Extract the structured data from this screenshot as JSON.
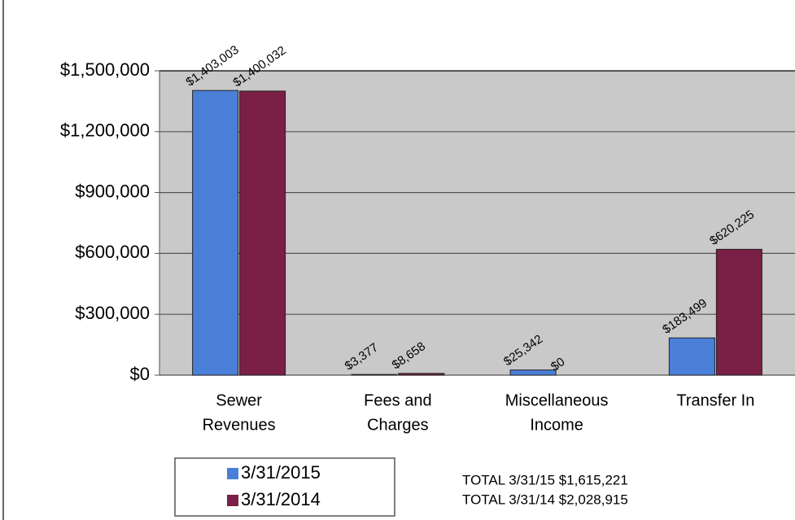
{
  "chart_data": {
    "type": "bar",
    "categories": [
      [
        "Sewer",
        "Revenues"
      ],
      [
        "Fees and",
        "Charges"
      ],
      [
        "Miscellaneous",
        "Income"
      ],
      [
        "Transfer In"
      ]
    ],
    "series": [
      {
        "name": "3/31/2015",
        "color": "#4a7fd8",
        "values": [
          1403003,
          3377,
          25342,
          183499
        ],
        "value_labels": [
          "$1,403,003",
          "$3,377",
          "$25,342",
          "$183,499"
        ]
      },
      {
        "name": "3/31/2014",
        "color": "#7a1f45",
        "values": [
          1400032,
          8658,
          0,
          620225
        ],
        "value_labels": [
          "$1,400,032",
          "$8,658",
          "$0",
          "$620,225"
        ]
      }
    ],
    "ylim": [
      0,
      1500000
    ],
    "yticks": [
      {
        "value": 0,
        "label": "$0"
      },
      {
        "value": 300000,
        "label": "$300,000"
      },
      {
        "value": 600000,
        "label": "$600,000"
      },
      {
        "value": 900000,
        "label": "$900,000"
      },
      {
        "value": 1200000,
        "label": "$1,200,000"
      },
      {
        "value": 1500000,
        "label": "$1,500,000"
      }
    ],
    "grid": true,
    "annotations": [
      "TOTAL 3/31/15 $1,615,221",
      "TOTAL 3/31/14 $2,028,915"
    ]
  }
}
